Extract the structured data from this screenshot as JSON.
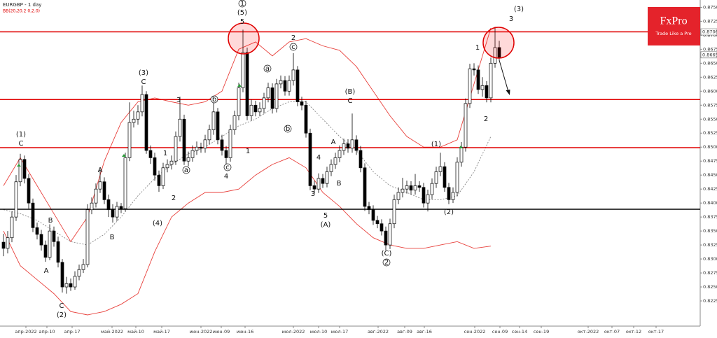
{
  "chart_data": {
    "type": "candlestick",
    "title": "EURGBP - 1 day",
    "subtitle": "BB(20,20.2 0,2.0)",
    "candles": [
      [
        0.833,
        0.8345,
        0.8305,
        0.8319
      ],
      [
        0.8319,
        0.835,
        0.831,
        0.8338
      ],
      [
        0.8338,
        0.8385,
        0.833,
        0.8375
      ],
      [
        0.8375,
        0.845,
        0.8368,
        0.8438
      ],
      [
        0.8438,
        0.8488,
        0.843,
        0.8478
      ],
      [
        0.8478,
        0.8485,
        0.8435,
        0.8444
      ],
      [
        0.8444,
        0.8452,
        0.839,
        0.84
      ],
      [
        0.84,
        0.8408,
        0.8348,
        0.8356
      ],
      [
        0.8356,
        0.8365,
        0.8335,
        0.8344
      ],
      [
        0.8344,
        0.8352,
        0.8315,
        0.8325
      ],
      [
        0.8325,
        0.8333,
        0.8295,
        0.8303
      ],
      [
        0.8303,
        0.8362,
        0.8298,
        0.835
      ],
      [
        0.835,
        0.8358,
        0.8322,
        0.8331
      ],
      [
        0.8331,
        0.834,
        0.8285,
        0.8294
      ],
      [
        0.8294,
        0.83,
        0.824,
        0.825
      ],
      [
        0.825,
        0.8268,
        0.8238,
        0.8256
      ],
      [
        0.8256,
        0.8265,
        0.8243,
        0.825
      ],
      [
        0.825,
        0.8278,
        0.8245,
        0.8269
      ],
      [
        0.8269,
        0.829,
        0.8262,
        0.8281
      ],
      [
        0.8281,
        0.83,
        0.8275,
        0.829
      ],
      [
        0.829,
        0.8398,
        0.8285,
        0.8388
      ],
      [
        0.8388,
        0.841,
        0.838,
        0.84
      ],
      [
        0.84,
        0.8435,
        0.8392,
        0.8425
      ],
      [
        0.8425,
        0.846,
        0.8418,
        0.8438
      ],
      [
        0.8438,
        0.8446,
        0.8398,
        0.8406
      ],
      [
        0.8406,
        0.8415,
        0.8375,
        0.8388
      ],
      [
        0.8388,
        0.8398,
        0.8365,
        0.8375
      ],
      [
        0.8375,
        0.8402,
        0.8368,
        0.8394
      ],
      [
        0.8394,
        0.84,
        0.8382,
        0.839
      ],
      [
        0.839,
        0.849,
        0.8385,
        0.8481
      ],
      [
        0.8481,
        0.858,
        0.8475,
        0.8544
      ],
      [
        0.8544,
        0.8565,
        0.8535,
        0.855
      ],
      [
        0.855,
        0.8575,
        0.854,
        0.8563
      ],
      [
        0.8563,
        0.861,
        0.8555,
        0.8594
      ],
      [
        0.8594,
        0.86,
        0.8488,
        0.8494
      ],
      [
        0.8494,
        0.8503,
        0.847,
        0.8481
      ],
      [
        0.8481,
        0.849,
        0.844,
        0.845
      ],
      [
        0.845,
        0.8458,
        0.842,
        0.8431
      ],
      [
        0.8431,
        0.8472,
        0.8425,
        0.8463
      ],
      [
        0.8463,
        0.8478,
        0.8455,
        0.8469
      ],
      [
        0.8469,
        0.8485,
        0.846,
        0.8475
      ],
      [
        0.8475,
        0.8528,
        0.8468,
        0.8519
      ],
      [
        0.8519,
        0.859,
        0.851,
        0.855
      ],
      [
        0.855,
        0.8558,
        0.8468,
        0.8475
      ],
      [
        0.8475,
        0.8492,
        0.8466,
        0.8481
      ],
      [
        0.8481,
        0.8503,
        0.8474,
        0.8494
      ],
      [
        0.8494,
        0.851,
        0.8486,
        0.85
      ],
      [
        0.85,
        0.8508,
        0.849,
        0.8498
      ],
      [
        0.8498,
        0.8522,
        0.849,
        0.8513
      ],
      [
        0.8513,
        0.854,
        0.8505,
        0.8531
      ],
      [
        0.8531,
        0.8585,
        0.8522,
        0.8563
      ],
      [
        0.8563,
        0.857,
        0.8505,
        0.8513
      ],
      [
        0.8513,
        0.8522,
        0.8485,
        0.8494
      ],
      [
        0.8494,
        0.8502,
        0.847,
        0.8481
      ],
      [
        0.8481,
        0.854,
        0.8474,
        0.8531
      ],
      [
        0.8531,
        0.8565,
        0.8522,
        0.8556
      ],
      [
        0.8556,
        0.8615,
        0.8548,
        0.8606
      ],
      [
        0.8606,
        0.871,
        0.8598,
        0.8669
      ],
      [
        0.8669,
        0.8678,
        0.8548,
        0.8556
      ],
      [
        0.8556,
        0.8585,
        0.8547,
        0.8575
      ],
      [
        0.8575,
        0.8583,
        0.8555,
        0.8563
      ],
      [
        0.8563,
        0.858,
        0.8555,
        0.8569
      ],
      [
        0.8569,
        0.8597,
        0.856,
        0.8588
      ],
      [
        0.8588,
        0.8615,
        0.858,
        0.8606
      ],
      [
        0.8606,
        0.8614,
        0.856,
        0.8569
      ],
      [
        0.8569,
        0.8622,
        0.8562,
        0.8613
      ],
      [
        0.8613,
        0.8628,
        0.8605,
        0.8619
      ],
      [
        0.8619,
        0.8627,
        0.8592,
        0.86
      ],
      [
        0.86,
        0.8628,
        0.8592,
        0.8619
      ],
      [
        0.8619,
        0.8668,
        0.861,
        0.8638
      ],
      [
        0.8638,
        0.8645,
        0.8573,
        0.8581
      ],
      [
        0.8581,
        0.859,
        0.8566,
        0.8575
      ],
      [
        0.8575,
        0.8583,
        0.8517,
        0.8525
      ],
      [
        0.8525,
        0.8533,
        0.8423,
        0.8431
      ],
      [
        0.8431,
        0.844,
        0.8417,
        0.8425
      ],
      [
        0.8425,
        0.8453,
        0.8418,
        0.8444
      ],
      [
        0.8444,
        0.8452,
        0.8427,
        0.8435
      ],
      [
        0.8435,
        0.8465,
        0.8428,
        0.8456
      ],
      [
        0.8456,
        0.8478,
        0.8448,
        0.8469
      ],
      [
        0.8469,
        0.849,
        0.8461,
        0.8481
      ],
      [
        0.8481,
        0.8503,
        0.8473,
        0.8494
      ],
      [
        0.8494,
        0.8515,
        0.8486,
        0.8506
      ],
      [
        0.8506,
        0.8514,
        0.849,
        0.8498
      ],
      [
        0.8498,
        0.856,
        0.849,
        0.8513
      ],
      [
        0.8513,
        0.8521,
        0.8486,
        0.8494
      ],
      [
        0.8494,
        0.8502,
        0.8455,
        0.8463
      ],
      [
        0.8463,
        0.8471,
        0.8386,
        0.8394
      ],
      [
        0.8394,
        0.8402,
        0.838,
        0.8388
      ],
      [
        0.8388,
        0.8396,
        0.8361,
        0.8369
      ],
      [
        0.8369,
        0.8377,
        0.8355,
        0.8363
      ],
      [
        0.8363,
        0.8371,
        0.8342,
        0.835
      ],
      [
        0.835,
        0.8358,
        0.8315,
        0.8325
      ],
      [
        0.8325,
        0.8372,
        0.8318,
        0.8363
      ],
      [
        0.8363,
        0.8415,
        0.8355,
        0.8406
      ],
      [
        0.8406,
        0.8428,
        0.8398,
        0.8419
      ],
      [
        0.8419,
        0.8445,
        0.841,
        0.8425
      ],
      [
        0.8425,
        0.844,
        0.8417,
        0.8431
      ],
      [
        0.8431,
        0.8439,
        0.8415,
        0.8423
      ],
      [
        0.8423,
        0.8452,
        0.8415,
        0.8431
      ],
      [
        0.8431,
        0.8439,
        0.842,
        0.8428
      ],
      [
        0.8428,
        0.8436,
        0.8392,
        0.84
      ],
      [
        0.84,
        0.8424,
        0.8385,
        0.8415
      ],
      [
        0.8415,
        0.8444,
        0.8407,
        0.8435
      ],
      [
        0.8435,
        0.8465,
        0.8427,
        0.8456
      ],
      [
        0.8456,
        0.849,
        0.8448,
        0.8465
      ],
      [
        0.8465,
        0.8473,
        0.842,
        0.8428
      ],
      [
        0.8428,
        0.8436,
        0.8398,
        0.8406
      ],
      [
        0.8406,
        0.8428,
        0.84,
        0.8419
      ],
      [
        0.8419,
        0.8482,
        0.8412,
        0.8473
      ],
      [
        0.8473,
        0.8509,
        0.8465,
        0.85
      ],
      [
        0.85,
        0.8587,
        0.8492,
        0.8578
      ],
      [
        0.8578,
        0.8649,
        0.857,
        0.864
      ],
      [
        0.864,
        0.865,
        0.8628,
        0.8638
      ],
      [
        0.8638,
        0.8646,
        0.8595,
        0.8603
      ],
      [
        0.8603,
        0.8625,
        0.859,
        0.861
      ],
      [
        0.861,
        0.8618,
        0.858,
        0.8588
      ],
      [
        0.8588,
        0.866,
        0.858,
        0.865
      ],
      [
        0.865,
        0.8715,
        0.8642,
        0.8678
      ],
      [
        0.8678,
        0.869,
        0.8655,
        0.866
      ]
    ],
    "bollinger": {
      "upper": [
        0.8431,
        0.8481,
        0.8431,
        0.8381,
        0.8331,
        0.8375,
        0.8475,
        0.8544,
        0.8581,
        0.8588,
        0.8581,
        0.8575,
        0.8581,
        0.86,
        0.8675,
        0.8688,
        0.8663,
        0.8688,
        0.8694,
        0.8681,
        0.8673,
        0.8644,
        0.86,
        0.8556,
        0.8519,
        0.85,
        0.85,
        0.8513,
        0.8613,
        0.8713
      ],
      "middle": [
        0.8388,
        0.8381,
        0.8369,
        0.835,
        0.8331,
        0.8325,
        0.8344,
        0.8375,
        0.8413,
        0.8444,
        0.8469,
        0.8488,
        0.85,
        0.8519,
        0.8538,
        0.855,
        0.8569,
        0.8581,
        0.8581,
        0.855,
        0.8519,
        0.8494,
        0.8456,
        0.8431,
        0.8419,
        0.8406,
        0.8406,
        0.8413,
        0.8456,
        0.8519
      ],
      "lower": [
        0.835,
        0.8288,
        0.8263,
        0.8238,
        0.8206,
        0.82,
        0.8206,
        0.8219,
        0.8238,
        0.8313,
        0.8375,
        0.84,
        0.8419,
        0.8419,
        0.8425,
        0.845,
        0.8469,
        0.8481,
        0.8463,
        0.8419,
        0.8394,
        0.8363,
        0.8338,
        0.8325,
        0.8319,
        0.8319,
        0.8325,
        0.8331,
        0.8319,
        0.8323
      ]
    },
    "band_color": "#e8413c",
    "level_color": "#e00000",
    "levels": [
      0.8706,
      0.8585,
      0.8499
    ],
    "support": 0.8389,
    "price_labels": [
      0.8706,
      0.8665
    ],
    "ylim": [
      0.818,
      0.8763
    ],
    "yticks": [
      {
        "value": 0.875,
        "label": "0.8750"
      },
      {
        "value": 0.8725,
        "label": "0.8725"
      },
      {
        "value": 0.87,
        "label": "0.8700"
      },
      {
        "value": 0.8675,
        "label": "0.8675"
      },
      {
        "value": 0.865,
        "label": "0.8650"
      },
      {
        "value": 0.8625,
        "label": "0.8625"
      },
      {
        "value": 0.86,
        "label": "0.8600"
      },
      {
        "value": 0.8575,
        "label": "0.8575"
      },
      {
        "value": 0.855,
        "label": "0.8550"
      },
      {
        "value": 0.8525,
        "label": "0.8525"
      },
      {
        "value": 0.85,
        "label": "0.8500"
      },
      {
        "value": 0.8475,
        "label": "0.8475"
      },
      {
        "value": 0.845,
        "label": "0.8450"
      },
      {
        "value": 0.8425,
        "label": "0.8425"
      },
      {
        "value": 0.84,
        "label": "0.8400"
      },
      {
        "value": 0.8375,
        "label": "0.8375"
      },
      {
        "value": 0.835,
        "label": "0.8350"
      },
      {
        "value": 0.8325,
        "label": "0.8325"
      },
      {
        "value": 0.83,
        "label": "0.8300"
      },
      {
        "value": 0.8275,
        "label": "0.8275"
      },
      {
        "value": 0.825,
        "label": "0.8250"
      },
      {
        "value": 0.8225,
        "label": "0.8225"
      }
    ],
    "x_axis_labels": [
      "апр-2022",
      "апр-10",
      "апр-17",
      "май-2022",
      "май-10",
      "май-17",
      "июн-2022",
      "июн-09",
      "июн-16",
      "июл-2022",
      "июл-10",
      "июл-17",
      "авг-2022",
      "авг-09",
      "авг-16",
      "сен-2022",
      "сен-09",
      "сен-14",
      "сен-19",
      "окт-2022",
      "окт-07",
      "окт-12",
      "окт-17"
    ],
    "wave_labels": [
      "(1)",
      "C",
      "A",
      "B",
      "C",
      "(2)",
      "A",
      "B",
      "(3)",
      "C",
      "1",
      "3",
      "2",
      "(4)",
      "a",
      "b",
      "c",
      "4",
      "1",
      "(5)",
      "5",
      "1",
      "a",
      "2",
      "c",
      "b",
      "(B)",
      "C",
      "A",
      "4",
      "B",
      "3",
      "5",
      "(A)",
      "(C)",
      "2",
      "(1)",
      "(2)",
      "1",
      "2",
      "(3)",
      "3"
    ]
  },
  "logo": {
    "name": "FxPro",
    "tagline": "Trade Like a Pro"
  }
}
